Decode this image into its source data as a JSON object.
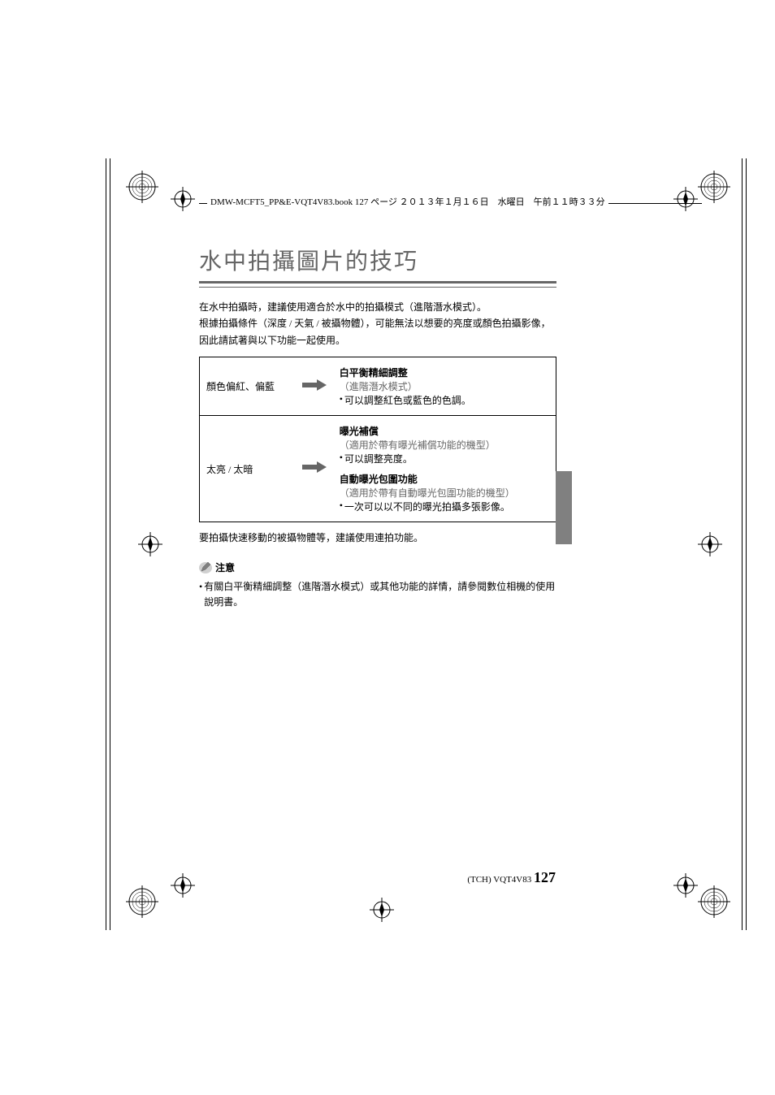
{
  "header": {
    "text": "DMW-MCFT5_PP&E-VQT4V83.book  127 ページ  ２０１３年１月１６日　水曜日　午前１１時３３分"
  },
  "title": "水中拍攝圖片的技巧",
  "intro_lines": [
    "在水中拍攝時，建議使用適合於水中的拍攝模式（進階潛水模式）。",
    "根據拍攝條件（深度 / 天氣 / 被攝物體），可能無法以想要的亮度或顏色拍攝影像，因此請試著與以下功能一起使用。"
  ],
  "table": {
    "rows": [
      {
        "left": "顏色偏紅、偏藍",
        "right": [
          {
            "kind": "bold",
            "text": "白平衡精細調整"
          },
          {
            "kind": "sub",
            "text": "（進階潛水模式）"
          },
          {
            "kind": "bullet",
            "text": "可以調整紅色或藍色的色調。"
          }
        ]
      },
      {
        "left": "太亮 / 太暗",
        "right": [
          {
            "kind": "bold",
            "text": "曝光補償"
          },
          {
            "kind": "sub",
            "text": "（適用於帶有曝光補償功能的機型）"
          },
          {
            "kind": "bullet",
            "text": "可以調整亮度。"
          },
          {
            "kind": "spacer"
          },
          {
            "kind": "bold",
            "text": "自動曝光包圍功能"
          },
          {
            "kind": "sub",
            "text": "（適用於帶有自動曝光包圍功能的機型）"
          },
          {
            "kind": "bullet",
            "text": "一次可以以不同的曝光拍攝多張影像。"
          }
        ]
      }
    ]
  },
  "after_table": "要拍攝快速移動的被攝物體等，建議使用連拍功能。",
  "note": {
    "label": "注意",
    "body": "有關白平衡精細調整（進階潛水模式）或其他功能的詳情，請參閱數位相機的使用說明書。"
  },
  "footer": {
    "prefix": "(TCH) VQT4V83",
    "page": "127"
  },
  "colors": {
    "title_color": "#666666",
    "text_color": "#000000",
    "sub_color": "#666666",
    "arrow_fill": "#666666",
    "side_tab": "#808080"
  }
}
